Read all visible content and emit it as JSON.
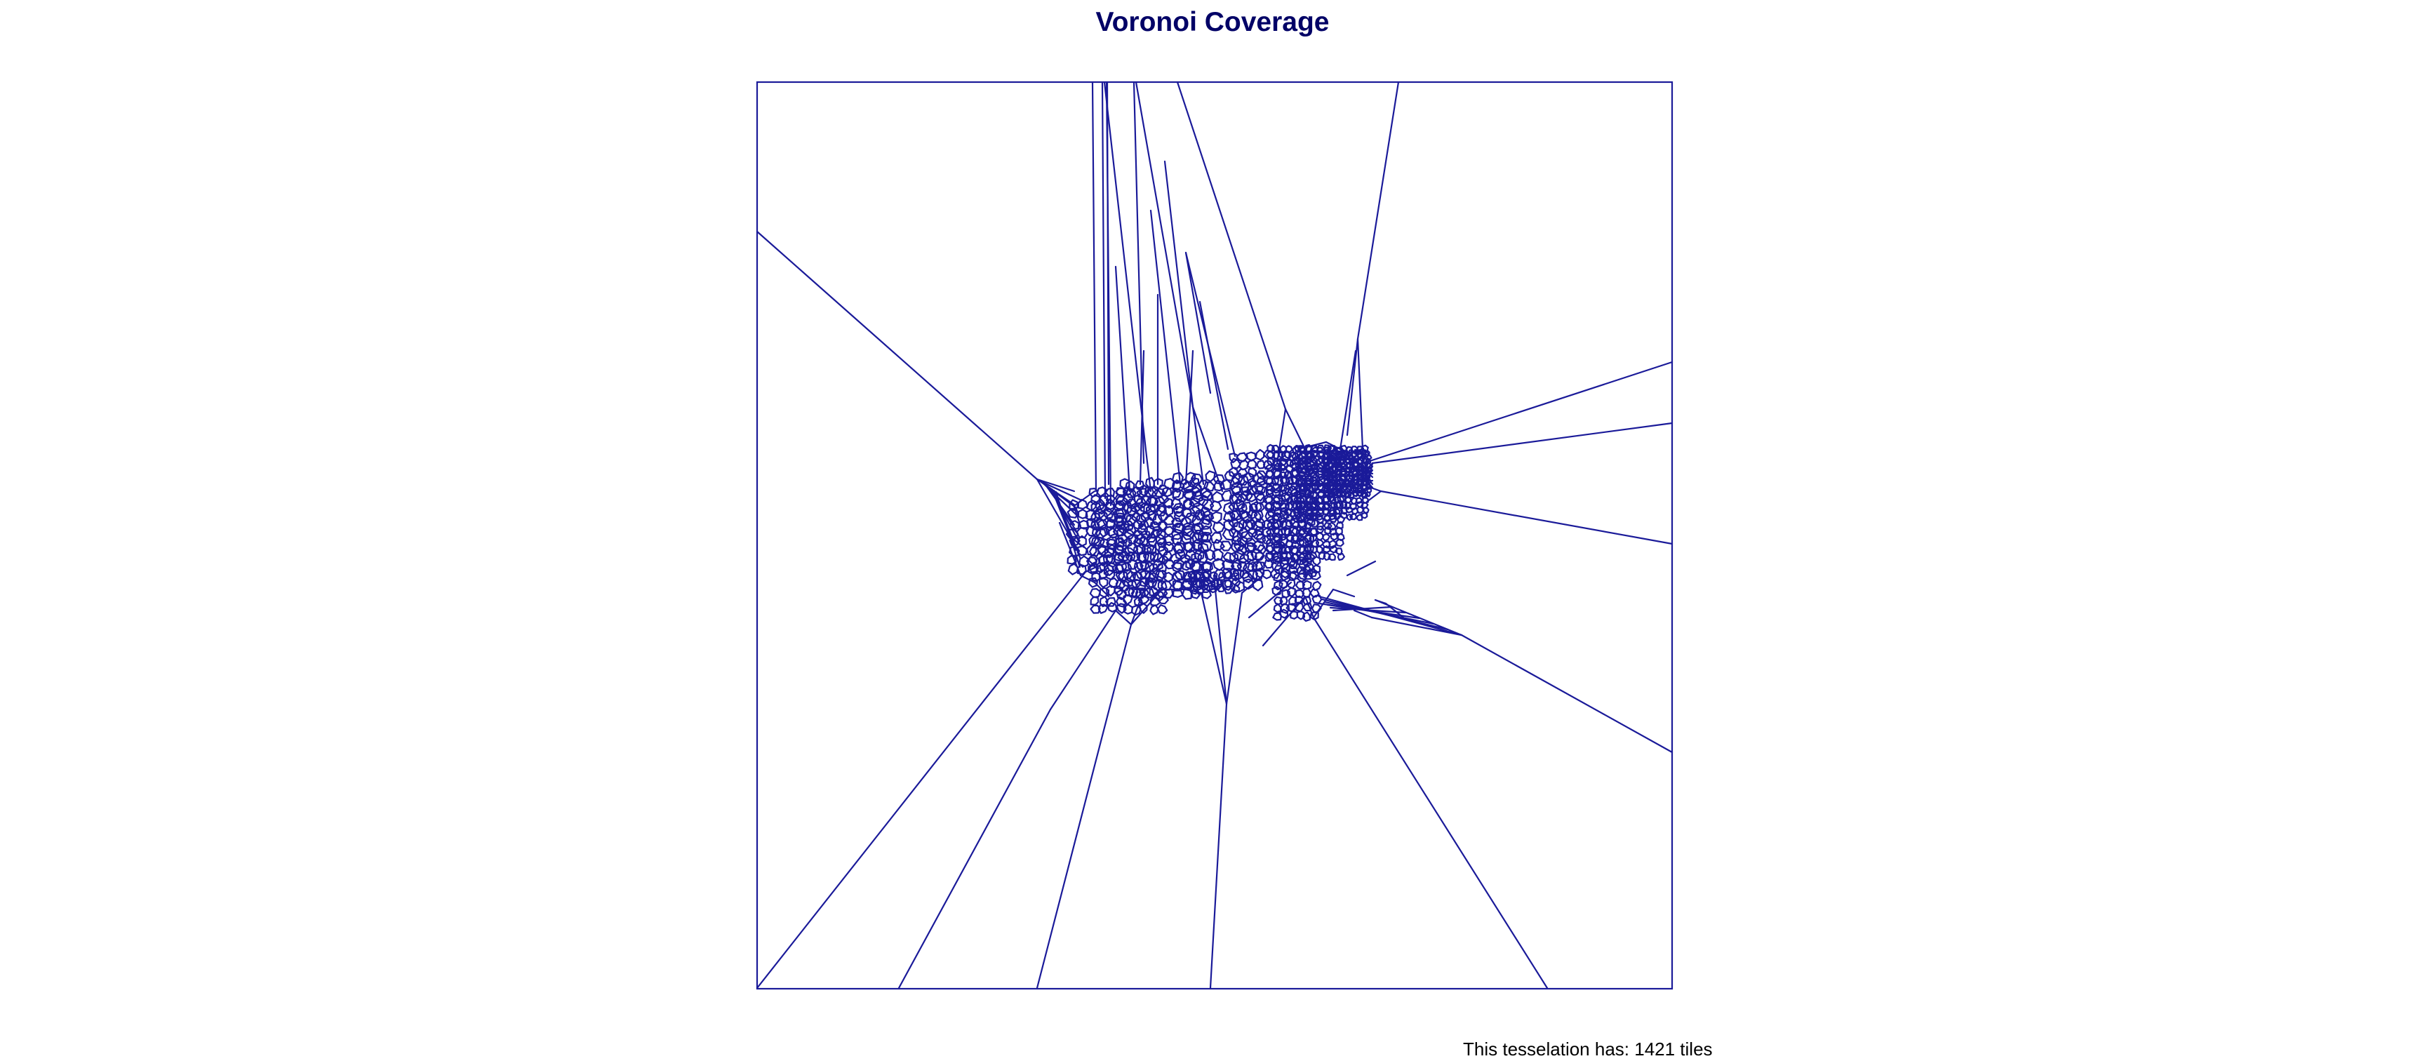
{
  "title": "Voronoi Coverage",
  "footer_text": "This tesselation has: 1421 tiles",
  "colors": {
    "title": "#000066",
    "edges": "#1a1a99",
    "background": "#ffffff"
  }
}
